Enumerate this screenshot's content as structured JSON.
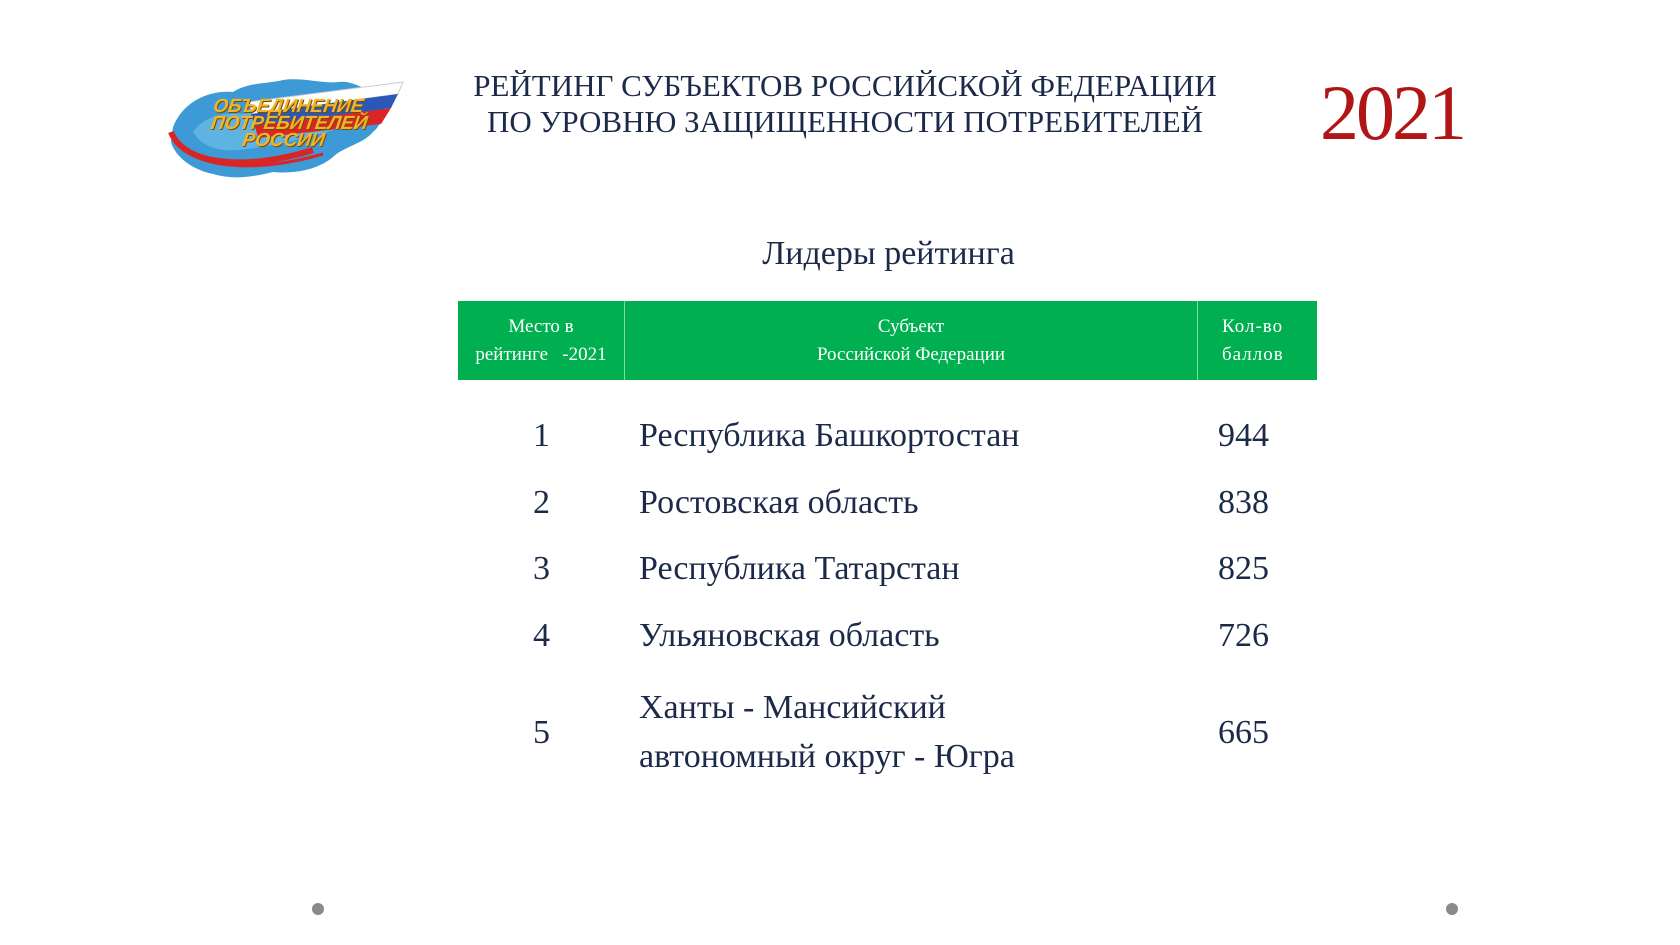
{
  "logo": {
    "lines": [
      "ОБЪЕДИНЕНИЕ",
      "ПОТРЕБИТЕЛЕЙ",
      "РОССИИ"
    ]
  },
  "header": {
    "title_line1": "РЕЙТИНГ СУБЪЕКТОВ РОССИЙСКОЙ ФЕДЕРАЦИИ",
    "title_line2": "ПО УРОВНЮ ЗАЩИЩЕННОСТИ ПОТРЕБИТЕЛЕЙ",
    "year": "2021"
  },
  "subtitle": "Лидеры рейтинга",
  "table": {
    "columns": [
      {
        "line1": "Место в",
        "line2": "рейтинге   -2021"
      },
      {
        "line1": "Субъект",
        "line2": "Российской Федерации"
      },
      {
        "line1": "Кол-во",
        "line2": "баллов"
      }
    ],
    "rows": [
      {
        "rank": "1",
        "subject_line1": "Республика Башкортостан",
        "subject_line2": "",
        "score": "944"
      },
      {
        "rank": "2",
        "subject_line1": "Ростовская область",
        "subject_line2": "",
        "score": "838"
      },
      {
        "rank": "3",
        "subject_line1": "Республика Татарстан",
        "subject_line2": "",
        "score": "825"
      },
      {
        "rank": "4",
        "subject_line1": "Ульяновская область",
        "subject_line2": "",
        "score": "726"
      },
      {
        "rank": "5",
        "subject_line1": "Ханты - Мансийский",
        "subject_line2": "автономный округ - Югра",
        "score": "665"
      }
    ]
  },
  "colors": {
    "header_bg": "#00b050",
    "year": "#b01616",
    "text": "#1c2a4a"
  }
}
